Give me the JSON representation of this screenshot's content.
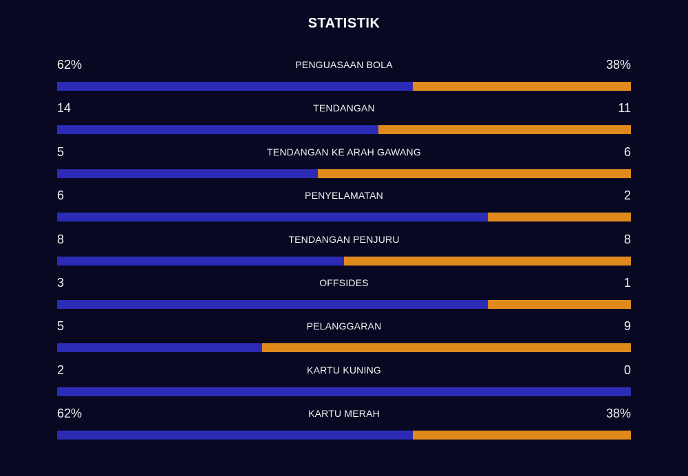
{
  "title": "STATISTIK",
  "colors": {
    "background": "#080822",
    "home": "#2b2bb5",
    "away": "#e08a1e"
  },
  "stats": [
    {
      "label": "PENGUASAAN BOLA",
      "left": "62%",
      "right": "38%",
      "home_share": 0.62
    },
    {
      "label": "TENDANGAN",
      "left": "14",
      "right": "11",
      "home_share": 0.56
    },
    {
      "label": "TENDANGAN KE ARAH GAWANG",
      "left": "5",
      "right": "6",
      "home_share": 0.455
    },
    {
      "label": "PENYELAMATAN",
      "left": "6",
      "right": "2",
      "home_share": 0.75
    },
    {
      "label": "TENDANGAN PENJURU",
      "left": "8",
      "right": "8",
      "home_share": 0.5
    },
    {
      "label": "OFFSIDES",
      "left": "3",
      "right": "1",
      "home_share": 0.75
    },
    {
      "label": "PELANGGARAN",
      "left": "5",
      "right": "9",
      "home_share": 0.357
    },
    {
      "label": "KARTU KUNING",
      "left": "2",
      "right": "0",
      "home_share": 1.0
    },
    {
      "label": "KARTU MERAH",
      "left": "62%",
      "right": "38%",
      "home_share": 0.62
    }
  ]
}
